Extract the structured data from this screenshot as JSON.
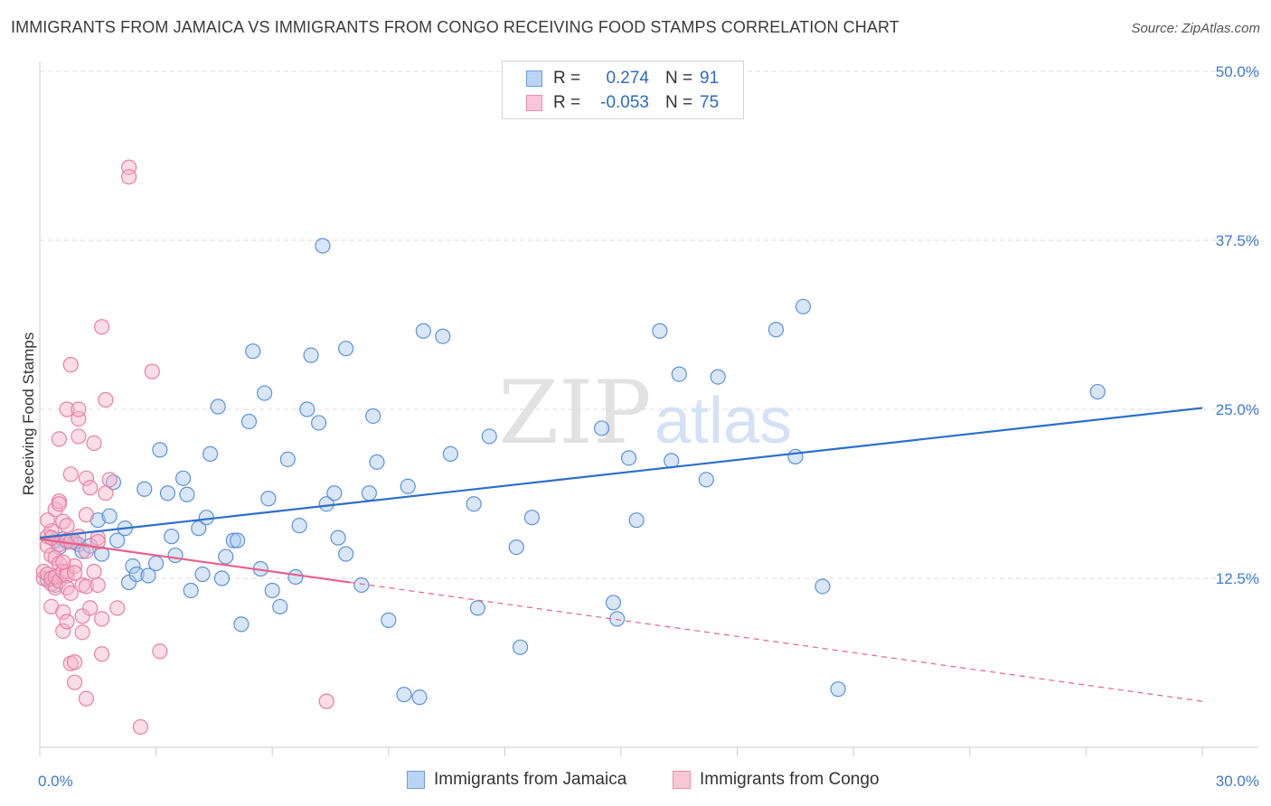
{
  "title": "IMMIGRANTS FROM JAMAICA VS IMMIGRANTS FROM CONGO RECEIVING FOOD STAMPS CORRELATION CHART",
  "source": "Source: ZipAtlas.com",
  "watermark": {
    "zip": "ZIP",
    "atlas": "atlas"
  },
  "legend": {
    "rows": [
      {
        "r_label": "R =",
        "r_value": "0.274",
        "n_label": "N =",
        "n_value": "91"
      },
      {
        "r_label": "R =",
        "r_value": "-0.053",
        "n_label": "N =",
        "n_value": "75"
      }
    ]
  },
  "bottom_legend": {
    "jamaica": "Immigrants from Jamaica",
    "congo": "Immigrants from Congo"
  },
  "colors": {
    "blue_fill": "#a9c8f0",
    "blue_stroke": "#5b93d9",
    "blue_line": "#2d6fc9",
    "pink_fill": "#f7b3c8",
    "pink_stroke": "#ea7fa0",
    "pink_line": "#e8608a",
    "tick_label": "#3d7ad0",
    "grid": "#dddddd"
  },
  "chart_data": {
    "type": "scatter",
    "title": "IMMIGRANTS FROM JAMAICA VS IMMIGRANTS FROM CONGO RECEIVING FOOD STAMPS CORRELATION CHART",
    "xlabel": "",
    "ylabel": "Receiving Food Stamps",
    "xlim": [
      0,
      30
    ],
    "ylim": [
      0,
      50
    ],
    "x_tick_labels": [
      "0.0%",
      "30.0%"
    ],
    "y_ticks": [
      12.5,
      25.0,
      37.5,
      50.0
    ],
    "y_tick_labels": [
      "12.5%",
      "25.0%",
      "37.5%",
      "50.0%"
    ],
    "series": [
      {
        "name": "Immigrants from Jamaica",
        "color": "blue",
        "R": 0.274,
        "N": 91,
        "trend": {
          "x": [
            0,
            30
          ],
          "y": [
            15.5,
            25.1
          ],
          "dashed_from": null
        },
        "points": [
          [
            0.4,
            12.0
          ],
          [
            0.4,
            15.3
          ],
          [
            0.7,
            15.2
          ],
          [
            0.9,
            15.2
          ],
          [
            0.6,
            15.4
          ],
          [
            1.0,
            15.0
          ],
          [
            1.1,
            14.5
          ],
          [
            1.6,
            14.3
          ],
          [
            1.5,
            16.8
          ],
          [
            1.8,
            17.1
          ],
          [
            1.9,
            19.6
          ],
          [
            2.0,
            15.3
          ],
          [
            2.2,
            16.2
          ],
          [
            2.3,
            12.2
          ],
          [
            2.4,
            13.4
          ],
          [
            2.5,
            12.8
          ],
          [
            2.7,
            19.1
          ],
          [
            2.8,
            12.7
          ],
          [
            3.0,
            13.6
          ],
          [
            3.1,
            22.0
          ],
          [
            3.3,
            18.8
          ],
          [
            3.4,
            15.6
          ],
          [
            3.5,
            14.2
          ],
          [
            3.7,
            19.9
          ],
          [
            3.8,
            18.7
          ],
          [
            3.9,
            11.6
          ],
          [
            4.1,
            16.2
          ],
          [
            4.2,
            12.8
          ],
          [
            4.3,
            17.0
          ],
          [
            4.4,
            21.7
          ],
          [
            4.6,
            25.2
          ],
          [
            4.7,
            12.5
          ],
          [
            4.8,
            14.1
          ],
          [
            5.0,
            15.3
          ],
          [
            5.1,
            15.3
          ],
          [
            5.2,
            9.1
          ],
          [
            5.4,
            24.1
          ],
          [
            5.5,
            29.3
          ],
          [
            5.7,
            13.2
          ],
          [
            5.8,
            26.2
          ],
          [
            5.9,
            18.4
          ],
          [
            6.0,
            11.6
          ],
          [
            6.2,
            10.4
          ],
          [
            6.4,
            21.3
          ],
          [
            6.6,
            12.6
          ],
          [
            6.7,
            16.4
          ],
          [
            6.9,
            25.0
          ],
          [
            7.0,
            29.0
          ],
          [
            7.2,
            24.0
          ],
          [
            7.3,
            37.1
          ],
          [
            7.4,
            18.0
          ],
          [
            7.6,
            18.8
          ],
          [
            7.7,
            15.5
          ],
          [
            7.9,
            14.3
          ],
          [
            7.9,
            29.5
          ],
          [
            8.3,
            12.0
          ],
          [
            8.5,
            18.8
          ],
          [
            8.6,
            24.5
          ],
          [
            8.7,
            21.1
          ],
          [
            9.0,
            9.4
          ],
          [
            9.4,
            3.9
          ],
          [
            9.5,
            19.3
          ],
          [
            9.8,
            3.7
          ],
          [
            9.9,
            30.8
          ],
          [
            10.4,
            30.4
          ],
          [
            10.6,
            21.7
          ],
          [
            11.2,
            18.0
          ],
          [
            11.3,
            10.3
          ],
          [
            11.6,
            23.0
          ],
          [
            12.3,
            14.8
          ],
          [
            12.4,
            7.4
          ],
          [
            12.7,
            17.0
          ],
          [
            14.5,
            23.6
          ],
          [
            14.8,
            10.7
          ],
          [
            14.9,
            9.5
          ],
          [
            15.2,
            21.4
          ],
          [
            15.4,
            16.8
          ],
          [
            16.0,
            30.8
          ],
          [
            16.3,
            21.2
          ],
          [
            16.5,
            27.6
          ],
          [
            17.2,
            19.8
          ],
          [
            17.5,
            27.4
          ],
          [
            19.0,
            30.9
          ],
          [
            19.5,
            21.5
          ],
          [
            19.7,
            32.6
          ],
          [
            20.2,
            11.9
          ],
          [
            20.6,
            4.3
          ],
          [
            27.3,
            26.3
          ],
          [
            0.2,
            12.4
          ],
          [
            0.5,
            14.8
          ],
          [
            1.3,
            14.9
          ]
        ]
      },
      {
        "name": "Immigrants from Congo",
        "color": "pink",
        "R": -0.053,
        "N": 75,
        "trend": {
          "x": [
            0,
            30
          ],
          "y": [
            15.4,
            3.4
          ],
          "dashed_from": 8.0
        },
        "points": [
          [
            0.1,
            12.5
          ],
          [
            0.1,
            13.0
          ],
          [
            0.2,
            15.6
          ],
          [
            0.2,
            14.9
          ],
          [
            0.2,
            12.8
          ],
          [
            0.3,
            12.1
          ],
          [
            0.3,
            16.0
          ],
          [
            0.3,
            12.5
          ],
          [
            0.3,
            14.2
          ],
          [
            0.3,
            10.4
          ],
          [
            0.4,
            11.8
          ],
          [
            0.4,
            14.0
          ],
          [
            0.4,
            17.6
          ],
          [
            0.4,
            12.6
          ],
          [
            0.5,
            18.2
          ],
          [
            0.5,
            15.0
          ],
          [
            0.5,
            22.8
          ],
          [
            0.5,
            12.3
          ],
          [
            0.5,
            13.6
          ],
          [
            0.6,
            13.0
          ],
          [
            0.6,
            10.0
          ],
          [
            0.6,
            16.7
          ],
          [
            0.6,
            8.6
          ],
          [
            0.7,
            25.0
          ],
          [
            0.7,
            13.0
          ],
          [
            0.7,
            16.4
          ],
          [
            0.7,
            15.3
          ],
          [
            0.7,
            12.7
          ],
          [
            0.7,
            11.8
          ],
          [
            0.7,
            9.3
          ],
          [
            0.8,
            28.3
          ],
          [
            0.8,
            20.2
          ],
          [
            0.8,
            15.2
          ],
          [
            0.8,
            11.4
          ],
          [
            0.8,
            6.2
          ],
          [
            0.9,
            13.4
          ],
          [
            0.9,
            12.9
          ],
          [
            0.9,
            6.3
          ],
          [
            0.9,
            4.8
          ],
          [
            1.0,
            23.0
          ],
          [
            1.0,
            24.3
          ],
          [
            1.0,
            25.0
          ],
          [
            1.0,
            15.6
          ],
          [
            1.1,
            12.0
          ],
          [
            1.1,
            9.7
          ],
          [
            1.1,
            8.5
          ],
          [
            1.2,
            17.2
          ],
          [
            1.2,
            19.9
          ],
          [
            1.2,
            14.5
          ],
          [
            1.2,
            11.9
          ],
          [
            1.2,
            3.6
          ],
          [
            1.3,
            19.2
          ],
          [
            1.3,
            10.3
          ],
          [
            1.4,
            22.5
          ],
          [
            1.4,
            13.0
          ],
          [
            1.5,
            12.0
          ],
          [
            1.5,
            15.5
          ],
          [
            1.5,
            15.2
          ],
          [
            1.6,
            9.5
          ],
          [
            1.6,
            31.1
          ],
          [
            1.6,
            6.9
          ],
          [
            1.7,
            25.7
          ],
          [
            1.7,
            18.8
          ],
          [
            1.8,
            19.8
          ],
          [
            2.0,
            10.3
          ],
          [
            2.3,
            42.9
          ],
          [
            2.3,
            42.2
          ],
          [
            2.6,
            1.5
          ],
          [
            2.9,
            27.8
          ],
          [
            3.1,
            7.1
          ],
          [
            7.4,
            3.4
          ],
          [
            0.2,
            16.8
          ],
          [
            0.3,
            15.5
          ],
          [
            0.5,
            18.0
          ],
          [
            0.6,
            13.7
          ]
        ]
      }
    ]
  }
}
